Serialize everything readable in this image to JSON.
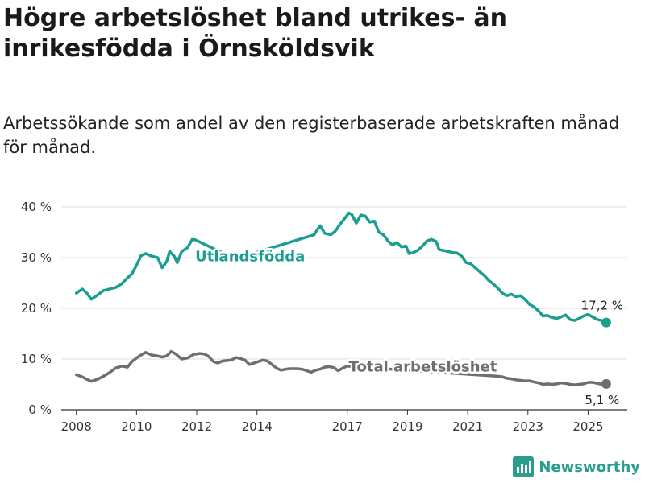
{
  "header": {
    "title": "Högre arbetslöshet bland utrikes- än inrikesfödda i Örnsköldsvik",
    "subtitle": "Arbetssökande som andel av den registerbaserade arbetskraften månad för månad."
  },
  "brand": {
    "name": "Newsworthy",
    "color": "#2a9d8f",
    "icon": "bar-chart-icon"
  },
  "chart_data": {
    "type": "line",
    "title": "Högre arbetslöshet bland utrikes- än inrikesfödda i Örnsköldsvik",
    "subtitle": "Arbetssökande som andel av den registerbaserade arbetskraften månad för månad.",
    "xlabel": "",
    "ylabel": "",
    "xlim": [
      2007.5,
      2026.3
    ],
    "ylim": [
      0,
      40
    ],
    "grid": true,
    "x_ticks": [
      2008,
      2010,
      2012,
      2014,
      2017,
      2019,
      2021,
      2023,
      2025
    ],
    "x_tick_labels": [
      "2008",
      "2010",
      "2012",
      "2014",
      "2017",
      "2019",
      "2021",
      "2023",
      "2025"
    ],
    "y_ticks": [
      0,
      10,
      20,
      30,
      40
    ],
    "y_tick_labels": [
      "0 %",
      "10 %",
      "20 %",
      "30 %",
      "40 %"
    ],
    "series": [
      {
        "name": "Utlandsfödda",
        "color": "#1a9e8f",
        "end_label": "17,2 %",
        "points": [
          [
            2008.0,
            23.0
          ],
          [
            2008.2,
            23.8
          ],
          [
            2008.35,
            23.0
          ],
          [
            2008.5,
            21.8
          ],
          [
            2008.7,
            22.6
          ],
          [
            2008.9,
            23.5
          ],
          [
            2009.1,
            23.8
          ],
          [
            2009.3,
            24.1
          ],
          [
            2009.5,
            24.8
          ],
          [
            2009.7,
            26.0
          ],
          [
            2009.85,
            26.8
          ],
          [
            2010.0,
            28.5
          ],
          [
            2010.15,
            30.4
          ],
          [
            2010.3,
            30.8
          ],
          [
            2010.5,
            30.3
          ],
          [
            2010.7,
            30.0
          ],
          [
            2010.85,
            28.0
          ],
          [
            2011.0,
            29.2
          ],
          [
            2011.1,
            31.2
          ],
          [
            2011.25,
            30.3
          ],
          [
            2011.35,
            29.0
          ],
          [
            2011.5,
            31.2
          ],
          [
            2011.7,
            32.0
          ],
          [
            2011.85,
            33.6
          ],
          [
            2011.95,
            33.5
          ],
          [
            2013.4,
            29.4
          ],
          [
            2013.6,
            30.3
          ],
          [
            2015.9,
            34.5
          ],
          [
            2016.0,
            35.5
          ],
          [
            2016.1,
            36.3
          ],
          [
            2016.25,
            34.8
          ],
          [
            2016.45,
            34.5
          ],
          [
            2016.6,
            35.2
          ],
          [
            2016.75,
            36.5
          ],
          [
            2016.95,
            38.0
          ],
          [
            2017.05,
            38.8
          ],
          [
            2017.15,
            38.5
          ],
          [
            2017.3,
            36.8
          ],
          [
            2017.45,
            38.4
          ],
          [
            2017.6,
            38.2
          ],
          [
            2017.75,
            37.0
          ],
          [
            2017.9,
            37.2
          ],
          [
            2018.05,
            35.0
          ],
          [
            2018.2,
            34.5
          ],
          [
            2018.35,
            33.3
          ],
          [
            2018.5,
            32.5
          ],
          [
            2018.65,
            33.0
          ],
          [
            2018.8,
            32.1
          ],
          [
            2018.95,
            32.3
          ],
          [
            2019.05,
            30.8
          ],
          [
            2019.2,
            31.0
          ],
          [
            2019.35,
            31.5
          ],
          [
            2019.5,
            32.3
          ],
          [
            2019.65,
            33.3
          ],
          [
            2019.8,
            33.6
          ],
          [
            2019.95,
            33.2
          ],
          [
            2020.05,
            31.6
          ],
          [
            2020.2,
            31.4
          ],
          [
            2020.35,
            31.2
          ],
          [
            2020.5,
            31.0
          ],
          [
            2020.65,
            30.9
          ],
          [
            2020.8,
            30.3
          ],
          [
            2020.95,
            29.0
          ],
          [
            2021.1,
            28.8
          ],
          [
            2021.25,
            28.0
          ],
          [
            2021.4,
            27.2
          ],
          [
            2021.55,
            26.5
          ],
          [
            2021.7,
            25.5
          ],
          [
            2021.85,
            24.8
          ],
          [
            2022.0,
            24.0
          ],
          [
            2022.15,
            23.0
          ],
          [
            2022.3,
            22.5
          ],
          [
            2022.45,
            22.8
          ],
          [
            2022.6,
            22.3
          ],
          [
            2022.75,
            22.5
          ],
          [
            2022.9,
            21.8
          ],
          [
            2023.05,
            20.8
          ],
          [
            2023.2,
            20.3
          ],
          [
            2023.35,
            19.5
          ],
          [
            2023.5,
            18.5
          ],
          [
            2023.65,
            18.6
          ],
          [
            2023.8,
            18.2
          ],
          [
            2023.95,
            18.0
          ],
          [
            2024.1,
            18.3
          ],
          [
            2024.25,
            18.7
          ],
          [
            2024.4,
            17.8
          ],
          [
            2024.55,
            17.6
          ],
          [
            2024.7,
            18.0
          ],
          [
            2024.85,
            18.5
          ],
          [
            2025.0,
            18.8
          ],
          [
            2025.15,
            18.3
          ],
          [
            2025.3,
            17.8
          ],
          [
            2025.45,
            17.6
          ],
          [
            2025.6,
            17.2
          ]
        ]
      },
      {
        "name": "Total arbetslöshet",
        "color": "#6e6e6e",
        "end_label": "5,1 %",
        "points": [
          [
            2008.0,
            6.9
          ],
          [
            2008.2,
            6.5
          ],
          [
            2008.35,
            6.0
          ],
          [
            2008.5,
            5.6
          ],
          [
            2008.7,
            6.0
          ],
          [
            2008.9,
            6.6
          ],
          [
            2009.1,
            7.3
          ],
          [
            2009.3,
            8.2
          ],
          [
            2009.5,
            8.6
          ],
          [
            2009.7,
            8.4
          ],
          [
            2009.85,
            9.5
          ],
          [
            2010.0,
            10.2
          ],
          [
            2010.15,
            10.8
          ],
          [
            2010.3,
            11.3
          ],
          [
            2010.5,
            10.8
          ],
          [
            2010.7,
            10.6
          ],
          [
            2010.85,
            10.4
          ],
          [
            2011.0,
            10.6
          ],
          [
            2011.15,
            11.5
          ],
          [
            2011.3,
            11.0
          ],
          [
            2011.5,
            10.0
          ],
          [
            2011.7,
            10.2
          ],
          [
            2011.9,
            10.9
          ],
          [
            2012.1,
            11.1
          ],
          [
            2012.25,
            11.0
          ],
          [
            2012.4,
            10.5
          ],
          [
            2012.55,
            9.5
          ],
          [
            2012.7,
            9.2
          ],
          [
            2012.85,
            9.6
          ],
          [
            2013.0,
            9.7
          ],
          [
            2013.15,
            9.8
          ],
          [
            2013.3,
            10.3
          ],
          [
            2013.45,
            10.1
          ],
          [
            2013.6,
            9.8
          ],
          [
            2013.75,
            8.9
          ],
          [
            2013.9,
            9.2
          ],
          [
            2014.05,
            9.5
          ],
          [
            2014.2,
            9.8
          ],
          [
            2014.35,
            9.6
          ],
          [
            2014.5,
            8.9
          ],
          [
            2014.65,
            8.2
          ],
          [
            2014.8,
            7.8
          ],
          [
            2014.95,
            8.0
          ],
          [
            2015.1,
            8.1
          ],
          [
            2015.3,
            8.1
          ],
          [
            2015.5,
            8.0
          ],
          [
            2015.65,
            7.7
          ],
          [
            2015.8,
            7.4
          ],
          [
            2015.95,
            7.8
          ],
          [
            2016.1,
            8.0
          ],
          [
            2016.25,
            8.4
          ],
          [
            2016.4,
            8.5
          ],
          [
            2016.55,
            8.3
          ],
          [
            2016.7,
            7.7
          ],
          [
            2016.85,
            8.2
          ],
          [
            2017.0,
            8.6
          ],
          [
            2017.15,
            8.5
          ],
          [
            2022.0,
            6.6
          ],
          [
            2022.15,
            6.5
          ],
          [
            2022.3,
            6.2
          ],
          [
            2022.45,
            6.1
          ],
          [
            2022.6,
            5.9
          ],
          [
            2022.75,
            5.8
          ],
          [
            2022.9,
            5.7
          ],
          [
            2023.05,
            5.7
          ],
          [
            2023.2,
            5.5
          ],
          [
            2023.35,
            5.3
          ],
          [
            2023.5,
            5.0
          ],
          [
            2023.65,
            5.1
          ],
          [
            2023.8,
            5.0
          ],
          [
            2023.95,
            5.1
          ],
          [
            2024.1,
            5.3
          ],
          [
            2024.25,
            5.2
          ],
          [
            2024.4,
            5.0
          ],
          [
            2024.55,
            4.9
          ],
          [
            2024.7,
            5.0
          ],
          [
            2024.85,
            5.1
          ],
          [
            2025.0,
            5.4
          ],
          [
            2025.15,
            5.4
          ],
          [
            2025.3,
            5.2
          ],
          [
            2025.45,
            5.0
          ],
          [
            2025.6,
            5.1
          ]
        ]
      }
    ]
  }
}
